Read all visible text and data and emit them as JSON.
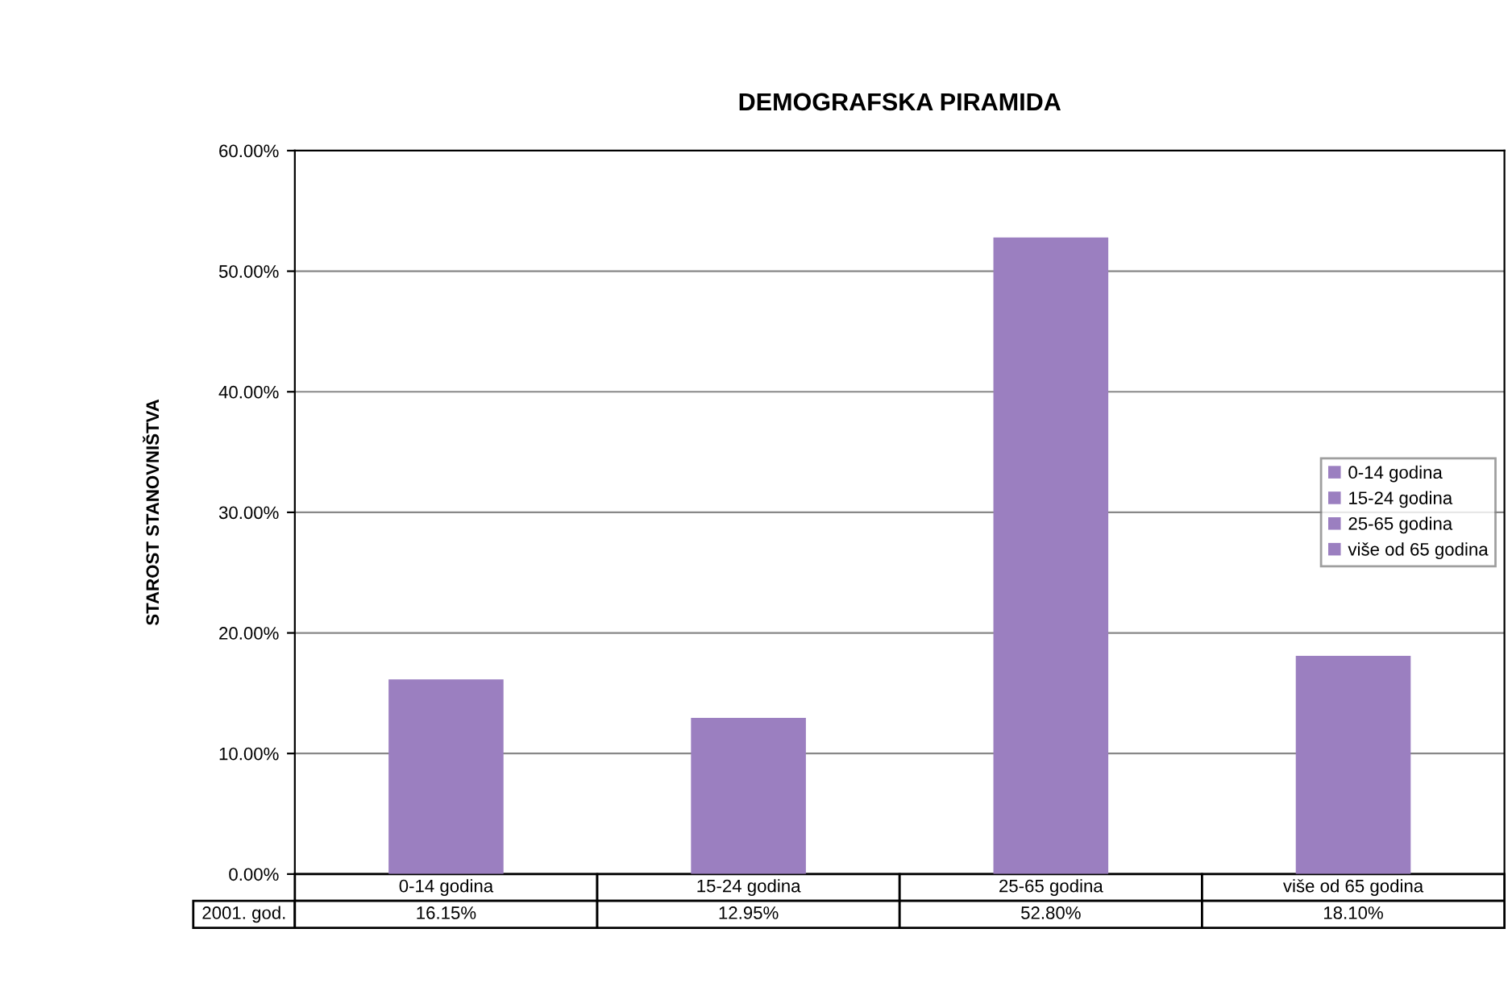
{
  "chart_data": {
    "type": "bar",
    "title": "DEMOGRAFSKA PIRAMIDA",
    "ylabel": "STAROST STANOVNIŠTVA",
    "categories": [
      "0-14 godina",
      "15-24 godina",
      "25-65 godina",
      "više od 65 godina"
    ],
    "series": [
      {
        "name": "0-14 godina",
        "color": "#9b7fc0",
        "values": [
          16.15,
          null,
          null,
          null
        ]
      },
      {
        "name": "15-24 godina",
        "color": "#9b7fc0",
        "values": [
          null,
          12.95,
          null,
          null
        ]
      },
      {
        "name": "25-65 godina",
        "color": "#9b7fc0",
        "values": [
          null,
          null,
          52.8,
          null
        ]
      },
      {
        "name": "više od 65 godina",
        "color": "#9b7fc0",
        "values": [
          null,
          null,
          null,
          18.1
        ]
      }
    ],
    "value_labels": [
      "16.15%",
      "12.95%",
      "52.80%",
      "18.10%"
    ],
    "annotations": [
      "2001. god."
    ],
    "ylim": [
      0,
      60
    ],
    "yticks": [
      {
        "value": 0,
        "label": "0.00%"
      },
      {
        "value": 10,
        "label": "10.00%"
      },
      {
        "value": 20,
        "label": "20.00%"
      },
      {
        "value": 30,
        "label": "30.00%"
      },
      {
        "value": 40,
        "label": "40.00%"
      },
      {
        "value": 50,
        "label": "50.00%"
      },
      {
        "value": 60,
        "label": "60.00%"
      }
    ],
    "grid": "y",
    "legend": "right"
  }
}
